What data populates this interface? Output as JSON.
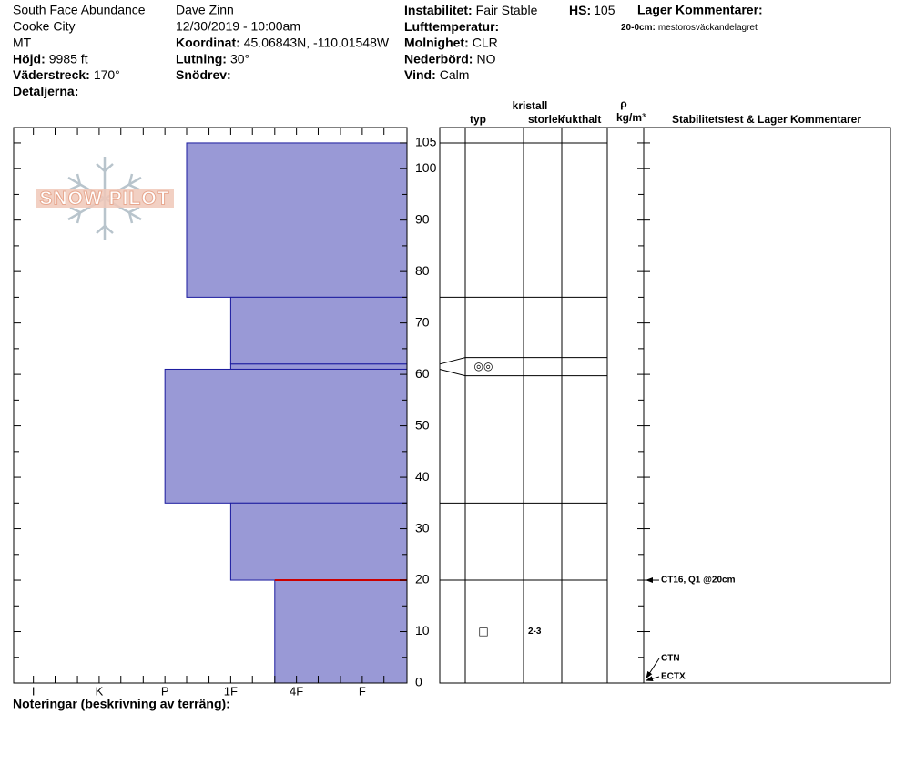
{
  "header": {
    "column_1": [
      {
        "text": "South Face Abundance"
      },
      {
        "text": "Cooke City"
      },
      {
        "text": "MT"
      },
      {
        "label": "Höjd:",
        "value": "9985 ft"
      },
      {
        "label": "Väderstreck:",
        "value": "170°"
      },
      {
        "label": "Detaljerna:"
      }
    ],
    "column_2": [
      {
        "text": "Dave Zinn"
      },
      {
        "text": "12/30/2019 - 10:00am"
      },
      {
        "label": "Koordinat:",
        "value": "45.06843N, -110.01548W"
      },
      {
        "label": "Lutning:",
        "value": "30°"
      },
      {
        "label": "Snödrev:"
      }
    ],
    "column_3": [
      {
        "label": "Instabilitet:",
        "value": "Fair Stable"
      },
      {
        "label": "Lufttemperatur:"
      },
      {
        "label": "Molnighet:",
        "value": "CLR"
      },
      {
        "label": "Nederbörd:",
        "value": "NO"
      },
      {
        "label": "Vind:",
        "value": "Calm"
      }
    ],
    "hs": {
      "label": "HS:",
      "value": 105
    },
    "layer_comments_title": "Lager Kommentarer:",
    "notes_label": "Noteringar (beskrivning av terräng):",
    "logo": "SNOW PILOT"
  },
  "table_headers": {
    "crystal": "kristall",
    "type": "typ",
    "size": "storlek",
    "moisture": "fukthalt",
    "rho": "ρ",
    "density_unit": "kg/m³",
    "comments": "Stabilitetstest & Lager Kommentarer"
  },
  "chart_data": {
    "type": "snow_profile",
    "ylim": [
      0,
      108
    ],
    "yticks": [
      0,
      10,
      20,
      30,
      40,
      50,
      60,
      70,
      80,
      90,
      100,
      105
    ],
    "minor_yticks": [
      5,
      15,
      25,
      35,
      45,
      55,
      65,
      75,
      85,
      95
    ],
    "xlim": [
      0.32,
      6.3
    ],
    "xreverse": true,
    "xticks": [
      {
        "value": 6,
        "label": "I"
      },
      {
        "value": 5,
        "label": "K"
      },
      {
        "value": 4,
        "label": "P"
      },
      {
        "value": 3,
        "label": "1F"
      },
      {
        "value": 2,
        "label": "4F"
      },
      {
        "value": 1,
        "label": "F"
      }
    ],
    "minor_xticks": [
      5.67,
      5.33,
      4.67,
      4.33,
      3.67,
      3.33,
      2.67,
      2.33,
      1.67,
      1.33,
      0.67
    ],
    "color": "#9999d6",
    "edge_color": "#1a1a9e",
    "layers": [
      {
        "top": 105,
        "bottom": 75,
        "hardness": 3.67
      },
      {
        "top": 75,
        "bottom": 62,
        "hardness": 3
      },
      {
        "top": 62,
        "bottom": 61,
        "hardness": 3,
        "grain": "◎◎"
      },
      {
        "top": 61,
        "bottom": 35,
        "hardness": 4
      },
      {
        "top": 35,
        "bottom": 20,
        "hardness": 3
      },
      {
        "top": 20,
        "bottom": 0,
        "hardness": 2.33,
        "grain": "□",
        "size": "2-3"
      }
    ],
    "concern": {
      "label": "20-0cm:",
      "text": "mestorosväckandelagret",
      "depth": 20,
      "color": "#cc0000"
    },
    "tests": [
      {
        "text": "CT16, Q1 @20cm",
        "depth": 20
      },
      {
        "text": "CTN",
        "depth": 1
      },
      {
        "text": "ECTX",
        "depth": 0.5
      }
    ]
  }
}
